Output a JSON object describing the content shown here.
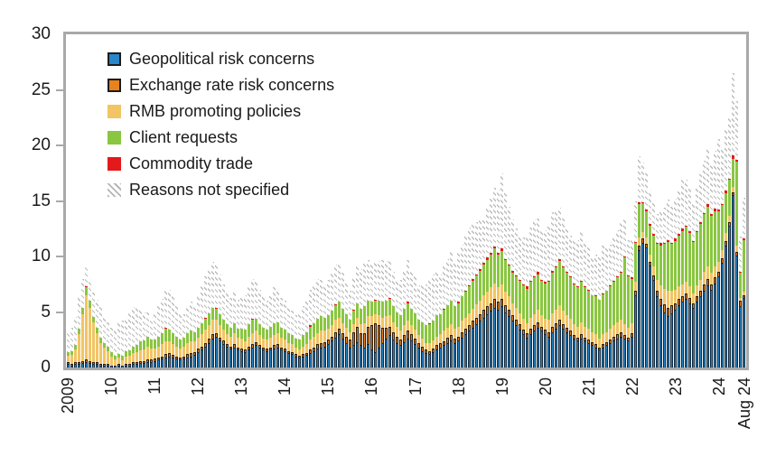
{
  "legend": {
    "items": [
      {
        "label": "Geopolitical risk concerns"
      },
      {
        "label": "Exchange rate risk concerns"
      },
      {
        "label": "RMB promoting policies"
      },
      {
        "label": "Client requests"
      },
      {
        "label": "Commodity trade"
      },
      {
        "label": "Reasons not specified"
      }
    ]
  },
  "chart_data": {
    "type": "bar",
    "stacked": true,
    "title": "",
    "xlabel": "",
    "ylabel": "",
    "ylim": [
      0,
      30
    ],
    "y_ticks": [
      0,
      5,
      10,
      15,
      20,
      25,
      30
    ],
    "grid": false,
    "legend_position": "top-left-inside",
    "x_unit": "month",
    "x_tick_labels": [
      "2009",
      "10",
      "11",
      "12",
      "13",
      "14",
      "15",
      "16",
      "17",
      "18",
      "19",
      "20",
      "21",
      "22",
      "23",
      "24",
      "Aug 24"
    ],
    "x_tick_month_index": [
      0,
      12,
      24,
      36,
      48,
      60,
      72,
      84,
      96,
      108,
      120,
      132,
      144,
      156,
      168,
      180,
      187
    ],
    "series_keys": [
      "geopolitical-risk-concerns",
      "exchange-rate-risk-concerns",
      "rmb-promoting-policies",
      "client-requests",
      "commodity-trade",
      "reasons-not-specified"
    ],
    "series_names": [
      "Geopolitical risk concerns",
      "Exchange rate risk concerns",
      "RMB promoting policies",
      "Client requests",
      "Commodity trade",
      "Reasons not specified"
    ],
    "series_colors": [
      "#2787c8",
      "#e8821d",
      "#f2c464",
      "#8ac641",
      "#e4191c",
      "#bcbcbc"
    ],
    "hatch_series_index": 5,
    "rows": [
      [
        0.3,
        0.1,
        0.6,
        0.3,
        0,
        1.7
      ],
      [
        0.2,
        0.1,
        0.8,
        0.3,
        0,
        2.1
      ],
      [
        0.3,
        0.1,
        1.2,
        0.4,
        0,
        2.5
      ],
      [
        0.3,
        0.2,
        2.5,
        0.5,
        0,
        3.0
      ],
      [
        0.4,
        0.2,
        4.2,
        0.6,
        0,
        2.6
      ],
      [
        0.5,
        0.2,
        5.8,
        0.7,
        0.1,
        1.7
      ],
      [
        0.4,
        0.2,
        4.8,
        0.6,
        0,
        2.0
      ],
      [
        0.3,
        0.1,
        3.6,
        0.5,
        0,
        2.2
      ],
      [
        0.3,
        0.1,
        2.6,
        0.5,
        0,
        2.5
      ],
      [
        0.2,
        0.1,
        1.8,
        0.5,
        0,
        2.8
      ],
      [
        0.2,
        0.1,
        1.4,
        0.4,
        0,
        2.4
      ],
      [
        0.2,
        0.1,
        1.1,
        0.4,
        0,
        2.2
      ],
      [
        0.1,
        0,
        0.8,
        0.4,
        0,
        2.2
      ],
      [
        0.1,
        0,
        0.6,
        0.3,
        0,
        2.4
      ],
      [
        0.2,
        0.1,
        0.5,
        0.4,
        0,
        2.8
      ],
      [
        0.1,
        0,
        0.5,
        0.4,
        0,
        3.2
      ],
      [
        0.2,
        0.1,
        0.6,
        0.5,
        0,
        3.0
      ],
      [
        0.2,
        0.1,
        0.7,
        0.5,
        0,
        3.4
      ],
      [
        0.3,
        0.1,
        0.8,
        0.6,
        0,
        3.6
      ],
      [
        0.3,
        0.1,
        0.9,
        0.7,
        0,
        3.3
      ],
      [
        0.4,
        0.1,
        1.0,
        0.8,
        0,
        2.9
      ],
      [
        0.4,
        0.1,
        1.1,
        0.8,
        0,
        2.5
      ],
      [
        0.5,
        0.2,
        1.2,
        0.9,
        0,
        2.2
      ],
      [
        0.5,
        0.2,
        1.0,
        0.8,
        0,
        2.0
      ],
      [
        0.6,
        0.2,
        0.9,
        0.8,
        0,
        2.3
      ],
      [
        0.7,
        0.2,
        1.0,
        0.9,
        0,
        2.7
      ],
      [
        0.8,
        0.2,
        1.1,
        1.0,
        0,
        3.1
      ],
      [
        0.9,
        0.3,
        1.2,
        1.1,
        0.1,
        3.4
      ],
      [
        1.0,
        0.3,
        1.1,
        1.0,
        0,
        3.6
      ],
      [
        0.9,
        0.2,
        1.0,
        1.0,
        0,
        3.3
      ],
      [
        0.8,
        0.2,
        0.9,
        0.9,
        0,
        2.8
      ],
      [
        0.7,
        0.2,
        0.8,
        0.8,
        0,
        2.4
      ],
      [
        0.8,
        0.2,
        0.9,
        0.8,
        0,
        2.1
      ],
      [
        0.9,
        0.3,
        1.0,
        0.9,
        0,
        2.3
      ],
      [
        1.0,
        0.3,
        1.1,
        0.9,
        0,
        2.6
      ],
      [
        1.1,
        0.3,
        1.0,
        0.8,
        0,
        2.4
      ],
      [
        1.4,
        0.3,
        1.0,
        0.9,
        0,
        2.9
      ],
      [
        1.6,
        0.3,
        1.1,
        1.0,
        0,
        3.3
      ],
      [
        1.9,
        0.3,
        1.2,
        1.0,
        0.1,
        3.7
      ],
      [
        2.2,
        0.4,
        1.2,
        1.1,
        0,
        4.0
      ],
      [
        2.6,
        0.4,
        1.3,
        1.1,
        0,
        4.1
      ],
      [
        2.8,
        0.3,
        1.2,
        1.0,
        0.1,
        3.9
      ],
      [
        2.4,
        0.3,
        1.1,
        1.0,
        0,
        3.6
      ],
      [
        2.1,
        0.3,
        1.0,
        0.9,
        0,
        3.2
      ],
      [
        1.9,
        0.2,
        0.9,
        0.9,
        0,
        2.9
      ],
      [
        1.7,
        0.2,
        0.9,
        0.8,
        0,
        2.7
      ],
      [
        1.8,
        0.3,
        1.0,
        0.9,
        0,
        2.9
      ],
      [
        1.6,
        0.2,
        0.9,
        0.8,
        0,
        2.6
      ],
      [
        1.5,
        0.2,
        0.9,
        0.9,
        0,
        2.8
      ],
      [
        1.4,
        0.2,
        0.8,
        1.0,
        0,
        3.1
      ],
      [
        1.6,
        0.3,
        0.9,
        1.1,
        0,
        3.4
      ],
      [
        1.8,
        0.3,
        1.0,
        1.2,
        0.1,
        3.6
      ],
      [
        2.0,
        0.3,
        1.0,
        1.1,
        0,
        3.4
      ],
      [
        1.8,
        0.2,
        0.9,
        1.0,
        0,
        3.1
      ],
      [
        1.6,
        0.2,
        0.8,
        1.0,
        0,
        2.8
      ],
      [
        1.5,
        0.2,
        0.8,
        0.9,
        0,
        2.6
      ],
      [
        1.6,
        0.2,
        0.9,
        1.0,
        0,
        2.9
      ],
      [
        1.7,
        0.3,
        0.9,
        1.1,
        0,
        3.2
      ],
      [
        1.8,
        0.3,
        1.0,
        1.0,
        0,
        3.0
      ],
      [
        1.6,
        0.2,
        0.9,
        0.9,
        0,
        2.7
      ],
      [
        1.5,
        0.2,
        0.8,
        0.9,
        0,
        2.6
      ],
      [
        1.3,
        0.2,
        0.7,
        0.9,
        0,
        2.4
      ],
      [
        1.2,
        0.2,
        0.7,
        0.8,
        0,
        2.2
      ],
      [
        1.0,
        0.2,
        0.6,
        0.8,
        0,
        2.1
      ],
      [
        0.9,
        0.1,
        0.6,
        0.9,
        0,
        2.3
      ],
      [
        1.0,
        0.2,
        0.7,
        1.0,
        0,
        2.6
      ],
      [
        1.1,
        0.2,
        0.8,
        1.1,
        0,
        2.9
      ],
      [
        1.3,
        0.3,
        0.9,
        1.2,
        0.1,
        3.2
      ],
      [
        1.5,
        0.3,
        1.0,
        1.2,
        0,
        3.4
      ],
      [
        1.7,
        0.4,
        1.0,
        1.3,
        0,
        3.6
      ],
      [
        1.8,
        0.4,
        1.1,
        1.3,
        0,
        3.3
      ],
      [
        1.9,
        0.4,
        1.0,
        1.2,
        0,
        3.0
      ],
      [
        2.1,
        0.4,
        1.0,
        1.2,
        0,
        3.2
      ],
      [
        2.4,
        0.4,
        1.0,
        1.3,
        0,
        3.4
      ],
      [
        2.7,
        0.5,
        1.1,
        1.3,
        0.1,
        3.6
      ],
      [
        3.0,
        0.5,
        1.0,
        1.4,
        0,
        3.5
      ],
      [
        2.6,
        0.5,
        0.9,
        1.3,
        0,
        3.2
      ],
      [
        2.2,
        0.6,
        0.8,
        1.2,
        0,
        2.9
      ],
      [
        1.8,
        0.7,
        0.7,
        1.1,
        0,
        2.6
      ],
      [
        2.0,
        1.2,
        0.7,
        1.2,
        0.1,
        2.9
      ],
      [
        2.3,
        1.4,
        0.8,
        1.3,
        0,
        3.3
      ],
      [
        2.0,
        1.1,
        0.8,
        1.4,
        0,
        3.6
      ],
      [
        1.8,
        1.3,
        0.9,
        1.5,
        0,
        3.9
      ],
      [
        2.1,
        1.6,
        0.9,
        1.4,
        0,
        3.7
      ],
      [
        1.6,
        2.2,
        0.8,
        1.3,
        0,
        3.5
      ],
      [
        1.4,
        2.6,
        0.8,
        1.2,
        0.1,
        3.3
      ],
      [
        1.8,
        2.0,
        0.9,
        1.3,
        0,
        3.6
      ],
      [
        2.2,
        1.4,
        0.9,
        1.4,
        0,
        3.8
      ],
      [
        2.6,
        1.0,
        1.0,
        1.4,
        0,
        3.6
      ],
      [
        2.9,
        0.8,
        1.0,
        1.5,
        0.1,
        3.4
      ],
      [
        2.5,
        0.7,
        0.9,
        1.4,
        0,
        3.1
      ],
      [
        2.2,
        0.6,
        0.9,
        1.3,
        0,
        2.9
      ],
      [
        2.0,
        0.5,
        0.8,
        1.4,
        0,
        3.2
      ],
      [
        2.3,
        0.6,
        0.9,
        1.5,
        0,
        3.5
      ],
      [
        2.6,
        0.7,
        0.9,
        1.6,
        0.1,
        3.8
      ],
      [
        2.4,
        0.6,
        0.8,
        1.5,
        0,
        3.5
      ],
      [
        2.1,
        0.5,
        0.8,
        1.5,
        0,
        3.3
      ],
      [
        1.8,
        0.4,
        0.7,
        1.4,
        0,
        3.1
      ],
      [
        1.5,
        0.4,
        0.7,
        1.5,
        0,
        3.4
      ],
      [
        1.3,
        0.3,
        0.6,
        1.6,
        0,
        3.7
      ],
      [
        1.2,
        0.3,
        0.7,
        1.7,
        0.1,
        4.0
      ],
      [
        1.4,
        0.3,
        0.7,
        1.8,
        0,
        4.2
      ],
      [
        1.6,
        0.4,
        0.8,
        1.9,
        0,
        3.9
      ],
      [
        1.8,
        0.4,
        0.8,
        1.8,
        0,
        3.6
      ],
      [
        2.0,
        0.4,
        0.9,
        1.9,
        0.1,
        3.9
      ],
      [
        2.2,
        0.5,
        0.9,
        2.0,
        0,
        4.2
      ],
      [
        2.4,
        0.5,
        1.0,
        2.1,
        0,
        4.5
      ],
      [
        2.2,
        0.4,
        0.9,
        2.0,
        0,
        4.1
      ],
      [
        2.4,
        0.4,
        0.9,
        2.1,
        0.1,
        4.4
      ],
      [
        2.7,
        0.5,
        1.0,
        2.2,
        0,
        4.7
      ],
      [
        3.0,
        0.5,
        1.0,
        2.3,
        0.1,
        5.0
      ],
      [
        3.3,
        0.5,
        1.1,
        2.4,
        0.1,
        5.2
      ],
      [
        3.6,
        0.6,
        1.1,
        2.5,
        0.2,
        5.0
      ],
      [
        3.9,
        0.6,
        1.2,
        2.6,
        0.1,
        4.7
      ],
      [
        4.2,
        0.6,
        1.2,
        2.7,
        0.2,
        4.4
      ],
      [
        4.5,
        0.7,
        1.3,
        2.8,
        0.1,
        4.1
      ],
      [
        4.8,
        0.7,
        1.3,
        2.9,
        0.2,
        4.5
      ],
      [
        5.1,
        0.7,
        1.4,
        3.0,
        0.1,
        4.9
      ],
      [
        5.4,
        0.8,
        1.4,
        3.1,
        0.2,
        5.3
      ],
      [
        5.2,
        0.7,
        1.3,
        3.0,
        0.1,
        5.7
      ],
      [
        5.5,
        0.7,
        1.3,
        3.0,
        0.2,
        6.8
      ],
      [
        5.0,
        0.6,
        1.2,
        2.9,
        0.1,
        6.0
      ],
      [
        4.6,
        0.6,
        1.2,
        2.8,
        0.1,
        5.2
      ],
      [
        4.2,
        0.5,
        1.1,
        2.7,
        0.2,
        4.6
      ],
      [
        3.8,
        0.5,
        1.1,
        2.8,
        0.1,
        4.2
      ],
      [
        3.4,
        0.5,
        1.0,
        2.9,
        0.1,
        3.9
      ],
      [
        3.0,
        0.4,
        1.0,
        3.0,
        0.1,
        4.2
      ],
      [
        2.7,
        0.4,
        0.9,
        3.1,
        0.2,
        4.5
      ],
      [
        3.0,
        0.5,
        1.0,
        3.2,
        0.1,
        4.8
      ],
      [
        3.3,
        0.5,
        1.0,
        3.3,
        0.1,
        5.1
      ],
      [
        3.6,
        0.5,
        1.1,
        3.2,
        0.2,
        4.8
      ],
      [
        3.3,
        0.4,
        1.0,
        3.1,
        0.1,
        4.4
      ],
      [
        3.0,
        0.4,
        1.0,
        3.2,
        0.1,
        4.7
      ],
      [
        2.8,
        0.4,
        1.1,
        3.4,
        0.1,
        5.0
      ],
      [
        3.2,
        0.5,
        1.2,
        3.6,
        0.2,
        5.3
      ],
      [
        3.5,
        0.5,
        1.2,
        3.8,
        0.1,
        5.0
      ],
      [
        3.8,
        0.5,
        1.3,
        4.0,
        0.2,
        4.6
      ],
      [
        3.5,
        0.4,
        1.2,
        3.9,
        0.1,
        4.3
      ],
      [
        3.2,
        0.4,
        1.1,
        3.8,
        0.1,
        4.0
      ],
      [
        2.9,
        0.4,
        1.1,
        3.7,
        0.1,
        3.7
      ],
      [
        2.6,
        0.3,
        1.0,
        3.6,
        0.1,
        3.9
      ],
      [
        2.4,
        0.3,
        1.0,
        3.5,
        0.1,
        4.2
      ],
      [
        2.6,
        0.4,
        1.1,
        3.6,
        0.1,
        4.5
      ],
      [
        2.4,
        0.3,
        1.0,
        3.5,
        0.1,
        4.1
      ],
      [
        2.2,
        0.3,
        1.0,
        3.4,
        0.1,
        3.8
      ],
      [
        2.0,
        0.3,
        0.9,
        3.3,
        0,
        3.5
      ],
      [
        1.8,
        0.3,
        0.9,
        3.4,
        0.1,
        3.7
      ],
      [
        1.6,
        0.2,
        0.8,
        3.5,
        0,
        4.0
      ],
      [
        1.8,
        0.3,
        0.9,
        3.6,
        0.1,
        4.3
      ],
      [
        2.0,
        0.3,
        0.9,
        3.7,
        0,
        4.0
      ],
      [
        2.2,
        0.3,
        1.0,
        3.8,
        0.1,
        3.7
      ],
      [
        2.4,
        0.4,
        1.0,
        3.9,
        0.1,
        3.9
      ],
      [
        2.6,
        0.4,
        1.1,
        4.0,
        0.1,
        4.2
      ],
      [
        2.8,
        0.4,
        1.1,
        4.2,
        0.1,
        4.5
      ],
      [
        2.6,
        0.3,
        1.0,
        6.0,
        0.1,
        3.5
      ],
      [
        2.4,
        0.3,
        0.9,
        4.6,
        0.1,
        3.2
      ],
      [
        2.8,
        0.3,
        0.9,
        4.0,
        0.1,
        3.4
      ],
      [
        6.5,
        0.4,
        0.8,
        3.5,
        0.1,
        3.7
      ],
      [
        10.6,
        0.4,
        0.7,
        3.0,
        0.2,
        4.1
      ],
      [
        11.2,
        0.4,
        0.6,
        2.6,
        0.1,
        3.6
      ],
      [
        10.8,
        0.3,
        0.6,
        2.4,
        0.1,
        3.3
      ],
      [
        9.2,
        0.3,
        0.7,
        2.6,
        0.1,
        3.0
      ],
      [
        7.9,
        0.4,
        0.8,
        2.8,
        0.1,
        2.8
      ],
      [
        6.4,
        0.5,
        1.0,
        3.2,
        0.1,
        2.6
      ],
      [
        5.6,
        0.6,
        1.2,
        3.6,
        0.2,
        2.9
      ],
      [
        5.0,
        0.7,
        1.4,
        4.0,
        0.1,
        3.2
      ],
      [
        4.6,
        0.8,
        1.5,
        4.4,
        0.2,
        3.6
      ],
      [
        4.9,
        0.7,
        1.3,
        4.2,
        0.1,
        3.3
      ],
      [
        5.2,
        0.6,
        1.2,
        4.4,
        0.2,
        3.6
      ],
      [
        5.6,
        0.6,
        1.1,
        4.6,
        0.1,
        4.0
      ],
      [
        5.9,
        0.5,
        1.1,
        4.8,
        0.2,
        4.4
      ],
      [
        6.2,
        0.5,
        1.0,
        5.0,
        0.1,
        4.1
      ],
      [
        5.8,
        0.5,
        1.0,
        4.8,
        0.2,
        3.8
      ],
      [
        5.4,
        0.4,
        0.9,
        4.6,
        0.1,
        3.5
      ],
      [
        5.9,
        0.5,
        1.0,
        4.8,
        0.1,
        3.9
      ],
      [
        6.4,
        0.5,
        1.0,
        5.0,
        0.2,
        4.3
      ],
      [
        6.9,
        0.6,
        1.1,
        5.2,
        0.1,
        4.7
      ],
      [
        7.4,
        0.6,
        1.1,
        5.4,
        0.2,
        5.1
      ],
      [
        7.0,
        0.5,
        1.0,
        5.2,
        0.1,
        4.6
      ],
      [
        7.6,
        0.5,
        1.0,
        5.0,
        0.2,
        5.2
      ],
      [
        8.2,
        0.4,
        0.9,
        4.6,
        0.1,
        6.4
      ],
      [
        9.4,
        0.4,
        0.8,
        4.0,
        0.1,
        5.0
      ],
      [
        11.0,
        0.4,
        0.7,
        3.6,
        0.2,
        5.6
      ],
      [
        12.8,
        0.3,
        0.6,
        3.2,
        0.1,
        5.5
      ],
      [
        15.5,
        0.3,
        0.5,
        2.5,
        0.3,
        7.4
      ],
      [
        10.1,
        0.3,
        0.6,
        7.5,
        0.2,
        5.3
      ],
      [
        5.5,
        0.5,
        0.3,
        2.2,
        0.1,
        3.2
      ],
      [
        6.3,
        0.2,
        0.3,
        4.7,
        0.1,
        3.7
      ]
    ]
  }
}
